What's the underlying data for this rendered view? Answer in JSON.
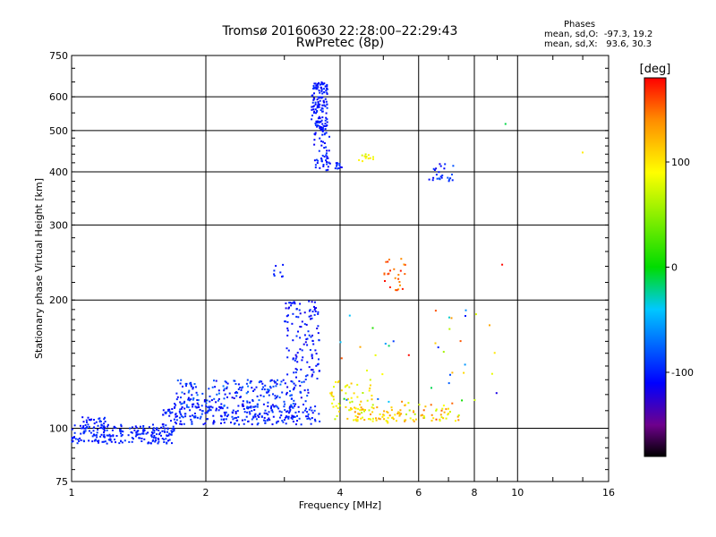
{
  "title_line1": "Tromsø 20160630 22:28:00–22:29:43",
  "title_line2": "RwPretec (8p)",
  "phases": {
    "heading": "Phases",
    "line_o": "mean, sd,O:  -97.3, 19.2",
    "line_x": "mean, sd,X:   93.6, 30.3"
  },
  "colorbar": {
    "unit": "[deg]",
    "ticks": [
      "100",
      "0",
      "-100"
    ],
    "range": [
      -180,
      180
    ]
  },
  "chart_data": {
    "type": "scatter",
    "title": "Tromsø 20160630 22:28:00–22:29:43",
    "xlabel": "Frequency [MHz]",
    "ylabel": "Stationary phase Virtual Height [km]",
    "x_scale": "log",
    "y_scale": "log",
    "xlim": [
      1,
      16
    ],
    "ylim": [
      75,
      750
    ],
    "x_ticks": [
      1,
      2,
      4,
      6,
      8,
      10,
      16
    ],
    "y_ticks": [
      75,
      100,
      200,
      300,
      400,
      500,
      600,
      750
    ],
    "x_tick_labels": [
      "1",
      "2",
      "4",
      "6",
      "8",
      "10",
      "16"
    ],
    "y_tick_labels": [
      "75",
      "100",
      "200",
      "300",
      "400",
      "500",
      "600",
      "750"
    ],
    "grid": true,
    "color_metric": "phase [deg]",
    "clusters": [
      {
        "x_range": [
          1.0,
          1.7
        ],
        "y_range": [
          92,
          102
        ],
        "phase_range": [
          -110,
          -90
        ],
        "count": 220
      },
      {
        "x_range": [
          1.05,
          1.2
        ],
        "y_range": [
          100,
          107
        ],
        "phase_range": [
          -110,
          -90
        ],
        "count": 30
      },
      {
        "x_range": [
          1.6,
          3.6
        ],
        "y_range": [
          102,
          113
        ],
        "phase_range": [
          -115,
          -85
        ],
        "count": 260
      },
      {
        "x_range": [
          1.7,
          3.4
        ],
        "y_range": [
          112,
          130
        ],
        "phase_range": [
          -120,
          -70
        ],
        "count": 220
      },
      {
        "x_range": [
          3.0,
          3.6
        ],
        "y_range": [
          130,
          200
        ],
        "phase_range": [
          -120,
          -90
        ],
        "count": 120
      },
      {
        "x_range": [
          3.45,
          3.75
        ],
        "y_range": [
          500,
          650
        ],
        "phase_range": [
          -115,
          -90
        ],
        "count": 140
      },
      {
        "x_range": [
          3.5,
          3.8
        ],
        "y_range": [
          400,
          500
        ],
        "phase_range": [
          -115,
          -90
        ],
        "count": 50
      },
      {
        "x_range": [
          3.9,
          4.05
        ],
        "y_range": [
          405,
          420
        ],
        "phase_range": [
          -115,
          -90
        ],
        "count": 12
      },
      {
        "x_range": [
          2.8,
          3.1
        ],
        "y_range": [
          225,
          245
        ],
        "phase_range": [
          -110,
          -90
        ],
        "count": 8
      },
      {
        "x_range": [
          3.8,
          4.8
        ],
        "y_range": [
          104,
          130
        ],
        "phase_range": [
          60,
          120
        ],
        "count": 60
      },
      {
        "x_range": [
          4.2,
          5.5
        ],
        "y_range": [
          103,
          112
        ],
        "phase_range": [
          80,
          140
        ],
        "count": 60
      },
      {
        "x_range": [
          5.0,
          5.6
        ],
        "y_range": [
          210,
          250
        ],
        "phase_range": [
          130,
          180
        ],
        "count": 25
      },
      {
        "x_range": [
          4.4,
          4.8
        ],
        "y_range": [
          420,
          440
        ],
        "phase_range": [
          70,
          110
        ],
        "count": 12
      },
      {
        "x_range": [
          6.3,
          7.2
        ],
        "y_range": [
          380,
          420
        ],
        "phase_range": [
          -120,
          -80
        ],
        "count": 25
      },
      {
        "x_range": [
          5.5,
          7.5
        ],
        "y_range": [
          103,
          115
        ],
        "phase_range": [
          60,
          160
        ],
        "count": 50
      },
      {
        "x_range": [
          4.0,
          9.0
        ],
        "y_range": [
          115,
          190
        ],
        "phase_range": [
          -120,
          180
        ],
        "count": 40
      },
      {
        "x_range": [
          9.2,
          9.3
        ],
        "y_range": [
          240,
          243
        ],
        "phase_range": [
          170,
          180
        ],
        "count": 1
      },
      {
        "x_range": [
          9.3,
          9.4
        ],
        "y_range": [
          515,
          520
        ],
        "phase_range": [
          -20,
          -10
        ],
        "count": 1
      },
      {
        "x_range": [
          13.8,
          14.0
        ],
        "y_range": [
          440,
          448
        ],
        "phase_range": [
          90,
          100
        ],
        "count": 1
      }
    ]
  }
}
